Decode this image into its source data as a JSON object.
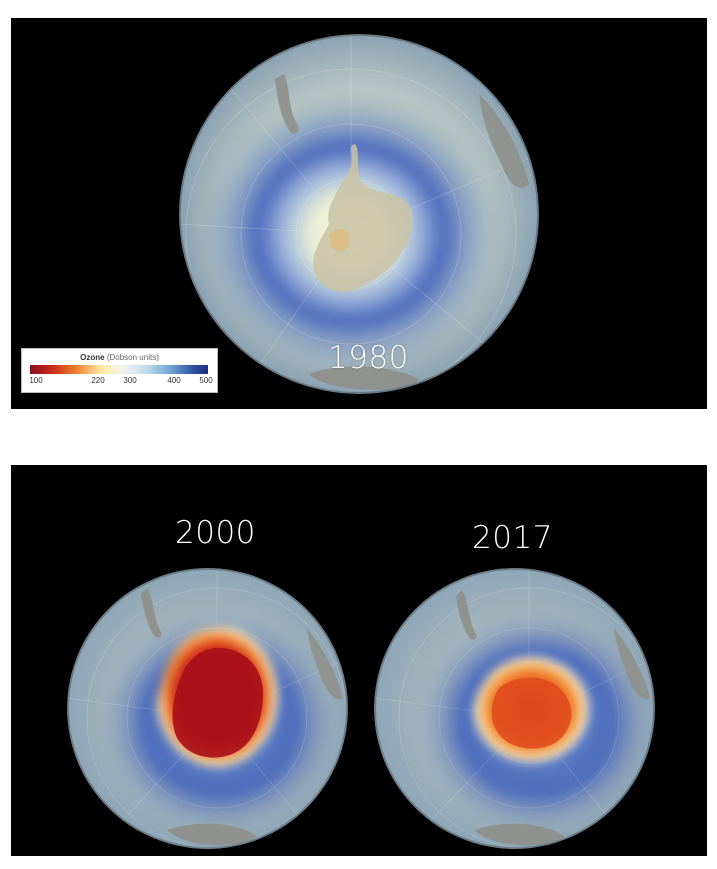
{
  "panels": [
    {
      "year": "1980",
      "legend": {
        "title_bold": "Ozone",
        "title_rest": "(Dobson units)",
        "ticks": [
          "100",
          "220",
          "300",
          "400",
          "500"
        ]
      }
    },
    {
      "year": "2000"
    },
    {
      "year": "2017"
    }
  ],
  "colors": {
    "background": "#000000",
    "ozone_low": "#8c0e1c",
    "ozone_mid_low": "#ee7a2a",
    "ozone_mid": "#f4f4f0",
    "ozone_high": "#1e2f7a",
    "land": "#8c8c84"
  }
}
